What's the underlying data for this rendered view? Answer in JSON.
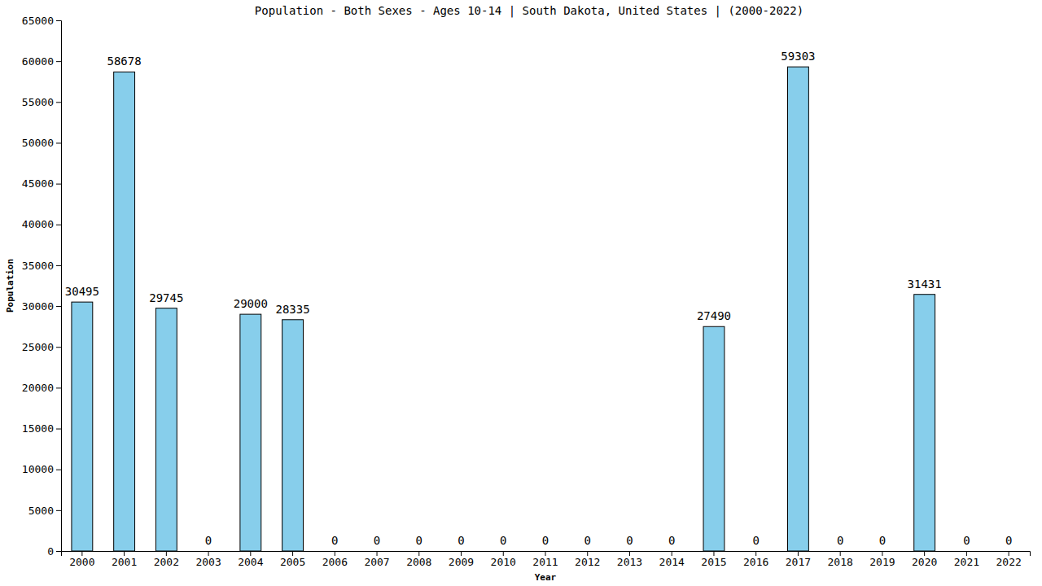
{
  "chart_data": {
    "type": "bar",
    "title": "Population - Both Sexes - Ages 10-14 | South Dakota, United States |  (2000-2022)",
    "x_label": "Year",
    "y_label": "Population",
    "categories": [
      "2000",
      "2001",
      "2002",
      "2003",
      "2004",
      "2005",
      "2006",
      "2007",
      "2008",
      "2009",
      "2010",
      "2011",
      "2012",
      "2013",
      "2014",
      "2015",
      "2016",
      "2017",
      "2018",
      "2019",
      "2020",
      "2021",
      "2022"
    ],
    "values": [
      30495,
      58678,
      29745,
      0,
      29000,
      28335,
      0,
      0,
      0,
      0,
      0,
      0,
      0,
      0,
      0,
      27490,
      0,
      59303,
      0,
      0,
      31431,
      0,
      0
    ],
    "color": "#87ceeb",
    "ylim": [
      0,
      65000
    ],
    "yticks": [
      0,
      5000,
      10000,
      15000,
      20000,
      25000,
      30000,
      35000,
      40000,
      45000,
      50000,
      55000,
      60000,
      65000
    ],
    "data_labels": true,
    "grid": false
  }
}
